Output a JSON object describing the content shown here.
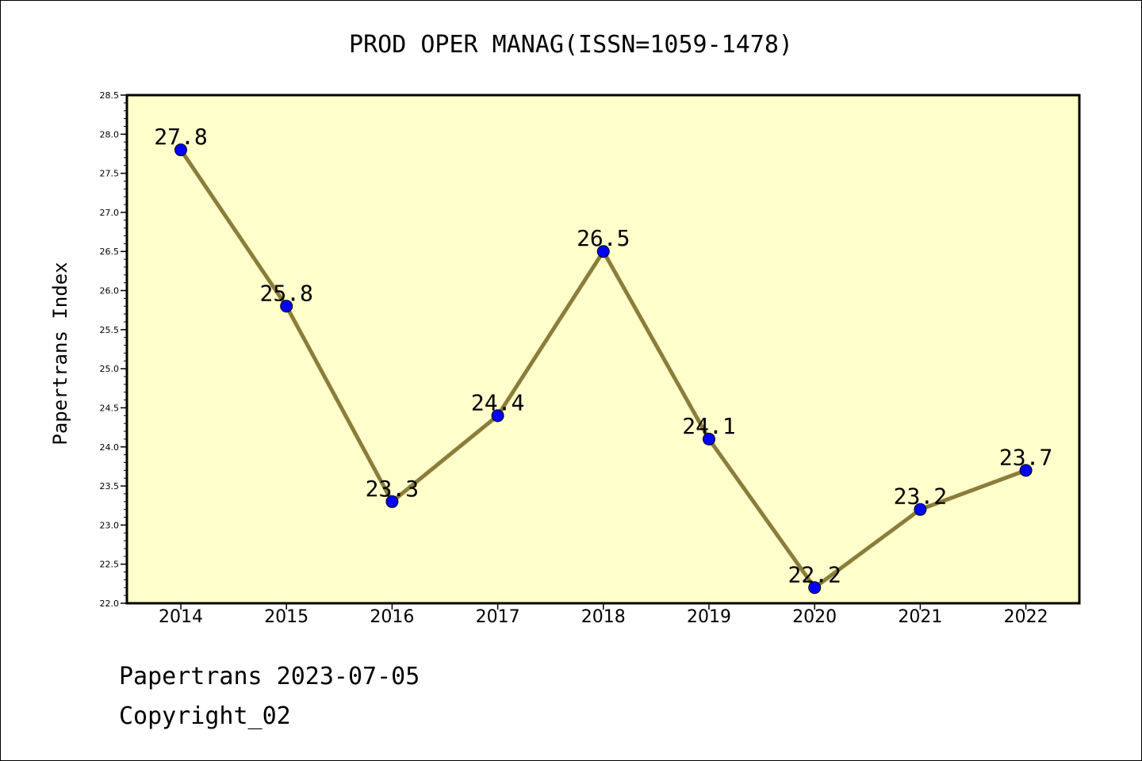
{
  "chart_data": {
    "type": "line",
    "title": "PROD OPER MANAG(ISSN=1059-1478)",
    "ylabel": "Papertrans Index",
    "xlabel": "",
    "categories": [
      "2014",
      "2015",
      "2016",
      "2017",
      "2018",
      "2019",
      "2020",
      "2021",
      "2022"
    ],
    "series": [
      {
        "values": [
          27.8,
          25.8,
          23.3,
          24.4,
          26.5,
          24.1,
          22.2,
          23.2,
          23.7
        ]
      }
    ],
    "data_labels": [
      "27.8",
      "25.8",
      "23.3",
      "24.4",
      "26.5",
      "24.1",
      "22.2",
      "23.2",
      "23.7"
    ],
    "ylim": [
      22.0,
      28.5
    ],
    "yticks": [
      "22.0",
      "22.5",
      "23.0",
      "23.5",
      "24.0",
      "24.5",
      "25.0",
      "25.5",
      "26.0",
      "26.5",
      "27.0",
      "27.5",
      "28.0",
      "28.5"
    ],
    "grid": false,
    "legend": "none",
    "colors": {
      "plot_background": "#ffffcc",
      "line": "#8b7d3a",
      "marker": "#0000ff"
    }
  },
  "footer": {
    "line1": "Papertrans 2023-07-05",
    "line2": "Copyright_02"
  }
}
